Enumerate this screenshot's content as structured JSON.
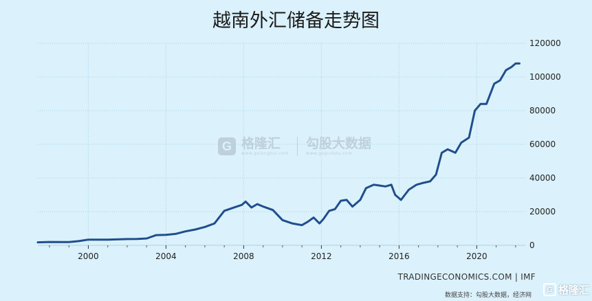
{
  "title": "越南外汇储备走势图",
  "watermark": {
    "logo_letter": "G",
    "name": "格隆汇",
    "url": "www.gelonghui.com",
    "name2": "勾股大数据",
    "url2": "www.gogudata.com"
  },
  "source": "TRADINGECONOMICS.COM | IMF",
  "footer": "数据支持：勾股大数据，经济网",
  "brand": {
    "logo_letter": "G",
    "name": "格隆汇"
  },
  "colors": {
    "background": "#dbf1fb",
    "line": "#1f4e8c",
    "grid": "#a9d2e4"
  },
  "chart_data": {
    "type": "line",
    "title": "越南外汇储备走势图",
    "xlabel": "",
    "ylabel": "",
    "xlim": [
      1997.4,
      2022.5
    ],
    "ylim": [
      0,
      120000
    ],
    "xticks": [
      2000,
      2004,
      2008,
      2012,
      2016,
      2020
    ],
    "yticks": [
      0,
      20000,
      40000,
      60000,
      80000,
      100000,
      120000
    ],
    "y_axis_side": "right",
    "grid": true,
    "series": [
      {
        "name": "",
        "x": [
          1997.4,
          1998.0,
          1999.0,
          1999.5,
          2000.0,
          2001.0,
          2002.0,
          2002.5,
          2003.0,
          2003.5,
          2004.0,
          2004.5,
          2005.0,
          2005.5,
          2006.0,
          2006.5,
          2007.0,
          2007.5,
          2007.9,
          2008.1,
          2008.4,
          2008.7,
          2009.0,
          2009.5,
          2010.0,
          2010.5,
          2011.0,
          2011.3,
          2011.6,
          2011.9,
          2012.1,
          2012.4,
          2012.7,
          2013.0,
          2013.3,
          2013.6,
          2014.0,
          2014.3,
          2014.7,
          2015.0,
          2015.3,
          2015.6,
          2015.8,
          2016.1,
          2016.5,
          2016.9,
          2017.2,
          2017.6,
          2017.9,
          2018.2,
          2018.5,
          2018.9,
          2019.2,
          2019.6,
          2019.9,
          2020.2,
          2020.5,
          2020.9,
          2021.2,
          2021.5,
          2021.8,
          2022.0,
          2022.2
        ],
        "values": [
          1800,
          2000,
          1900,
          2500,
          3400,
          3400,
          3700,
          3800,
          4100,
          6100,
          6200,
          6800,
          8300,
          9400,
          10900,
          13000,
          20500,
          22500,
          24000,
          26000,
          22500,
          24500,
          23000,
          21000,
          15000,
          13000,
          12000,
          14000,
          16500,
          13000,
          15500,
          20500,
          21500,
          26500,
          27000,
          23000,
          27000,
          34000,
          36000,
          35500,
          35000,
          36000,
          30000,
          27000,
          33000,
          36000,
          37000,
          38000,
          42000,
          55000,
          57000,
          55000,
          61000,
          64000,
          80000,
          84000,
          84000,
          96000,
          98000,
          104000,
          106000,
          108000,
          108000
        ]
      }
    ]
  }
}
